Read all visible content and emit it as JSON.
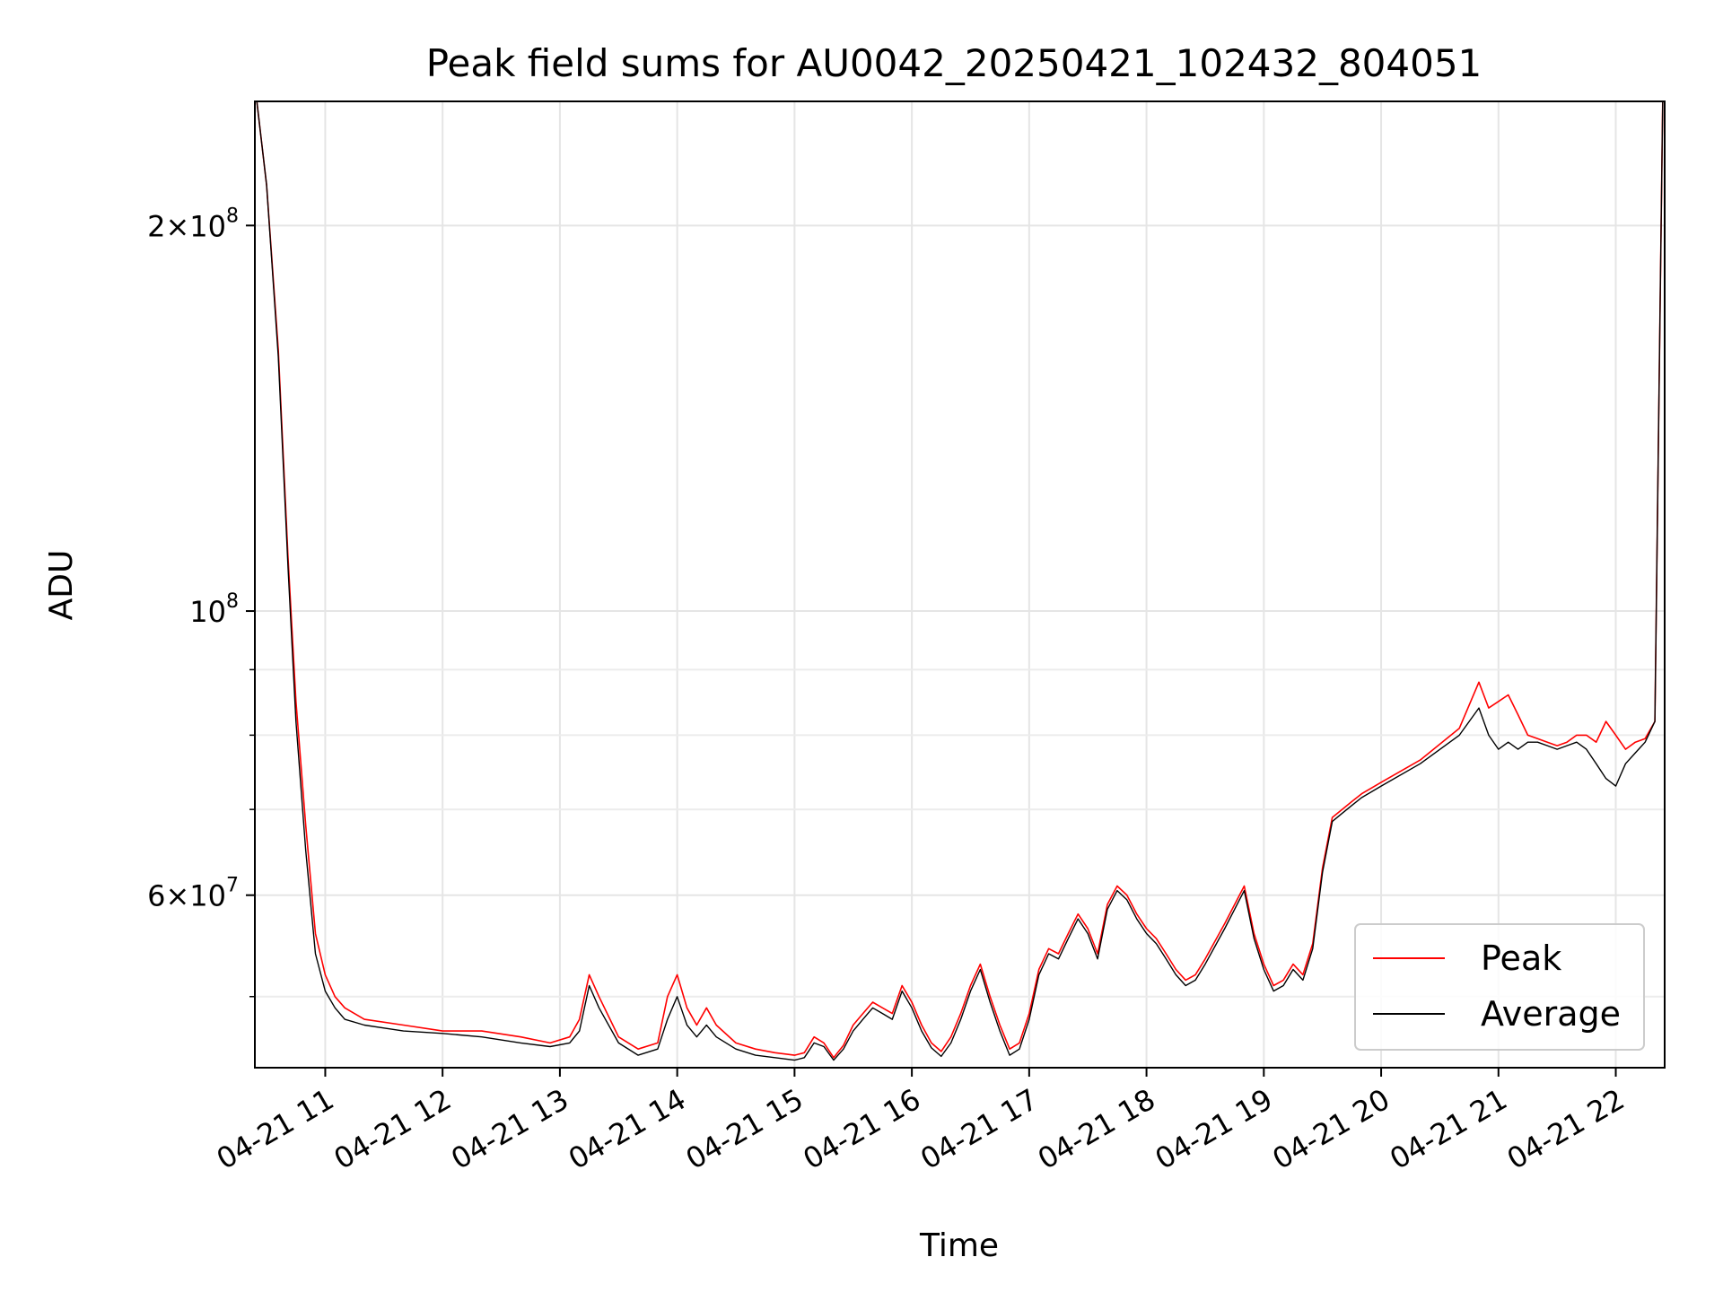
{
  "chart_data": {
    "type": "line",
    "title": "Peak field sums for AU0042_20250421_102432_804051",
    "xlabel": "Time",
    "ylabel": "ADU",
    "yscale": "log",
    "xlim": [
      "2025-04-21 10:24",
      "2025-04-21 22:25"
    ],
    "ylim": [
      44000000,
      250000000
    ],
    "grid": true,
    "legend_position": "lower right",
    "x_ticks": [
      "04-21 11",
      "04-21 12",
      "04-21 13",
      "04-21 14",
      "04-21 15",
      "04-21 16",
      "04-21 17",
      "04-21 18",
      "04-21 19",
      "04-21 20",
      "04-21 21",
      "04-21 22"
    ],
    "y_ticks": [
      {
        "value": 200000000,
        "mantissa": "2",
        "exponent": "8"
      },
      {
        "value": 100000000,
        "mantissa": "",
        "exponent": "8"
      },
      {
        "value": 60000000,
        "mantissa": "6",
        "exponent": "7"
      }
    ],
    "series": [
      {
        "name": "Peak",
        "color": "#ff0000",
        "x": [
          "10:25",
          "10:30",
          "10:36",
          "10:41",
          "10:45",
          "10:50",
          "10:55",
          "11:00",
          "11:05",
          "11:10",
          "11:20",
          "11:40",
          "12:00",
          "12:20",
          "12:40",
          "12:55",
          "13:05",
          "13:10",
          "13:15",
          "13:20",
          "13:30",
          "13:40",
          "13:50",
          "13:55",
          "14:00",
          "14:05",
          "14:10",
          "14:15",
          "14:20",
          "14:30",
          "14:40",
          "14:50",
          "15:00",
          "15:05",
          "15:10",
          "15:15",
          "15:20",
          "15:25",
          "15:30",
          "15:35",
          "15:40",
          "15:45",
          "15:50",
          "15:55",
          "16:00",
          "16:05",
          "16:10",
          "16:15",
          "16:20",
          "16:25",
          "16:30",
          "16:35",
          "16:40",
          "16:45",
          "16:50",
          "16:55",
          "17:00",
          "17:05",
          "17:10",
          "17:15",
          "17:20",
          "17:25",
          "17:30",
          "17:35",
          "17:40",
          "17:45",
          "17:50",
          "17:55",
          "18:00",
          "18:05",
          "18:10",
          "18:15",
          "18:20",
          "18:25",
          "18:30",
          "18:40",
          "18:50",
          "18:55",
          "19:00",
          "19:05",
          "19:10",
          "19:15",
          "19:20",
          "19:25",
          "19:30",
          "19:35",
          "19:40",
          "19:45",
          "19:50",
          "20:00",
          "20:20",
          "20:40",
          "20:50",
          "20:55",
          "21:00",
          "21:05",
          "21:10",
          "21:15",
          "21:20",
          "21:25",
          "21:30",
          "21:35",
          "21:40",
          "21:45",
          "21:50",
          "21:55",
          "22:00",
          "22:05",
          "22:10",
          "22:15",
          "22:20",
          "22:24"
        ],
        "values": [
          250000000,
          215000000,
          160000000,
          110000000,
          85000000,
          68000000,
          56000000,
          52000000,
          50000000,
          49000000,
          48000000,
          47500000,
          47000000,
          47000000,
          46500000,
          46000000,
          46500000,
          48000000,
          52000000,
          50000000,
          46500000,
          45500000,
          46000000,
          50000000,
          52000000,
          49000000,
          47500000,
          49000000,
          47500000,
          46000000,
          45500000,
          45200000,
          45000000,
          45200000,
          46500000,
          46000000,
          44800000,
          45800000,
          47500000,
          48500000,
          49500000,
          49000000,
          48500000,
          51000000,
          49500000,
          47500000,
          46000000,
          45300000,
          46500000,
          48500000,
          51000000,
          53000000,
          50000000,
          47500000,
          45500000,
          46000000,
          48500000,
          52500000,
          54500000,
          54000000,
          56000000,
          58000000,
          56500000,
          54000000,
          59000000,
          61000000,
          60000000,
          58000000,
          56500000,
          55500000,
          54000000,
          52500000,
          51500000,
          52000000,
          53500000,
          57000000,
          61000000,
          56000000,
          53000000,
          51000000,
          51500000,
          53000000,
          52000000,
          55000000,
          63000000,
          69000000,
          70000000,
          71000000,
          72000000,
          73500000,
          76500000,
          81000000,
          88000000,
          84000000,
          85000000,
          86000000,
          83000000,
          80000000,
          79500000,
          79000000,
          78500000,
          79000000,
          80000000,
          80000000,
          79000000,
          82000000,
          80000000,
          78000000,
          79000000,
          79500000,
          82000000,
          250000000
        ]
      },
      {
        "name": "Average",
        "color": "#000000",
        "x": [
          "10:25",
          "10:30",
          "10:36",
          "10:41",
          "10:45",
          "10:50",
          "10:55",
          "11:00",
          "11:05",
          "11:10",
          "11:20",
          "11:40",
          "12:00",
          "12:20",
          "12:40",
          "12:55",
          "13:05",
          "13:10",
          "13:15",
          "13:20",
          "13:30",
          "13:40",
          "13:50",
          "13:55",
          "14:00",
          "14:05",
          "14:10",
          "14:15",
          "14:20",
          "14:30",
          "14:40",
          "14:50",
          "15:00",
          "15:05",
          "15:10",
          "15:15",
          "15:20",
          "15:25",
          "15:30",
          "15:35",
          "15:40",
          "15:45",
          "15:50",
          "15:55",
          "16:00",
          "16:05",
          "16:10",
          "16:15",
          "16:20",
          "16:25",
          "16:30",
          "16:35",
          "16:40",
          "16:45",
          "16:50",
          "16:55",
          "17:00",
          "17:05",
          "17:10",
          "17:15",
          "17:20",
          "17:25",
          "17:30",
          "17:35",
          "17:40",
          "17:45",
          "17:50",
          "17:55",
          "18:00",
          "18:05",
          "18:10",
          "18:15",
          "18:20",
          "18:25",
          "18:30",
          "18:40",
          "18:50",
          "18:55",
          "19:00",
          "19:05",
          "19:10",
          "19:15",
          "19:20",
          "19:25",
          "19:30",
          "19:35",
          "19:40",
          "19:45",
          "19:50",
          "20:00",
          "20:20",
          "20:40",
          "20:50",
          "20:55",
          "21:00",
          "21:05",
          "21:10",
          "21:15",
          "21:20",
          "21:25",
          "21:30",
          "21:35",
          "21:40",
          "21:45",
          "21:50",
          "21:55",
          "22:00",
          "22:05",
          "22:10",
          "22:15",
          "22:20",
          "22:24"
        ],
        "values": [
          250000000,
          215000000,
          158000000,
          108000000,
          82000000,
          65000000,
          54000000,
          50500000,
          49000000,
          48000000,
          47500000,
          47000000,
          46800000,
          46500000,
          46000000,
          45700000,
          46000000,
          47000000,
          51000000,
          49000000,
          46000000,
          45000000,
          45500000,
          48000000,
          50000000,
          47500000,
          46500000,
          47500000,
          46500000,
          45500000,
          45000000,
          44800000,
          44600000,
          44800000,
          46000000,
          45700000,
          44600000,
          45500000,
          47000000,
          48000000,
          49000000,
          48500000,
          48000000,
          50500000,
          49000000,
          47000000,
          45600000,
          44900000,
          46000000,
          48000000,
          50500000,
          52500000,
          49500000,
          47000000,
          45000000,
          45500000,
          48000000,
          52000000,
          54000000,
          53500000,
          55500000,
          57500000,
          56000000,
          53500000,
          58500000,
          60500000,
          59500000,
          57500000,
          56000000,
          55000000,
          53500000,
          52000000,
          51000000,
          51500000,
          53000000,
          56500000,
          60500000,
          55500000,
          52500000,
          50500000,
          51000000,
          52500000,
          51500000,
          54500000,
          62500000,
          68500000,
          69500000,
          70500000,
          71500000,
          73000000,
          76000000,
          80000000,
          84000000,
          80000000,
          78000000,
          79000000,
          78000000,
          79000000,
          79000000,
          78500000,
          78000000,
          78500000,
          79000000,
          78000000,
          76000000,
          74000000,
          73000000,
          76000000,
          77500000,
          79000000,
          82000000,
          250000000
        ]
      }
    ]
  }
}
